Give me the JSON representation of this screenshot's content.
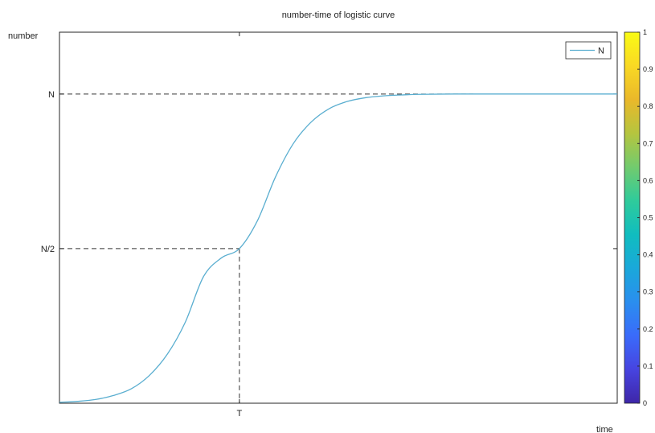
{
  "chart_data": {
    "type": "line",
    "title": "number-time of logistic curve",
    "xlabel": "time",
    "ylabel": "number",
    "x_ticks": [
      {
        "value": 0.5,
        "label": "T"
      }
    ],
    "y_ticks": [
      {
        "value": 0.5,
        "label": "N/2"
      },
      {
        "value": 1.0,
        "label": "N"
      }
    ],
    "xlim": [
      0,
      1.55
    ],
    "ylim": [
      0,
      1.2
    ],
    "grid": false,
    "legend": {
      "placement": "top-right",
      "entries": [
        "N"
      ]
    },
    "series": [
      {
        "name": "N",
        "color": "#5aaed0",
        "x": [
          0.0,
          0.05,
          0.1,
          0.15,
          0.2,
          0.25,
          0.3,
          0.35,
          0.4,
          0.45,
          0.5,
          0.55,
          0.6,
          0.65,
          0.7,
          0.75,
          0.8,
          0.85,
          0.9,
          0.95,
          1.0,
          1.1,
          1.2,
          1.3,
          1.4,
          1.55
        ],
        "y": [
          0.003,
          0.006,
          0.012,
          0.025,
          0.047,
          0.09,
          0.159,
          0.263,
          0.409,
          0.47,
          0.5,
          0.59,
          0.731,
          0.84,
          0.91,
          0.953,
          0.976,
          0.988,
          0.994,
          0.997,
          0.999,
          1.0,
          1.0,
          1.0,
          1.0,
          1.0
        ]
      }
    ],
    "reference_lines": [
      {
        "style": "dashed",
        "from": [
          0,
          1.0
        ],
        "to": [
          1.15,
          1.0
        ]
      },
      {
        "style": "dashed",
        "from": [
          0,
          0.5
        ],
        "to": [
          0.5,
          0.5
        ]
      },
      {
        "style": "dashed",
        "from": [
          0.5,
          0.5
        ],
        "to": [
          0.5,
          0
        ]
      }
    ],
    "colorbar": {
      "colormap": "parula",
      "colors": [
        "#3e26a8",
        "#4744e0",
        "#3a6bfa",
        "#2a8eef",
        "#1aa8da",
        "#10bdbf",
        "#2fcb9b",
        "#72cb6e",
        "#b5c53f",
        "#eab82a",
        "#f9d924",
        "#f9fb15"
      ],
      "ticks": [
        "0",
        "0.1",
        "0.2",
        "0.3",
        "0.4",
        "0.5",
        "0.6",
        "0.7",
        "0.8",
        "0.9",
        "1"
      ],
      "range": [
        0,
        1
      ]
    }
  }
}
